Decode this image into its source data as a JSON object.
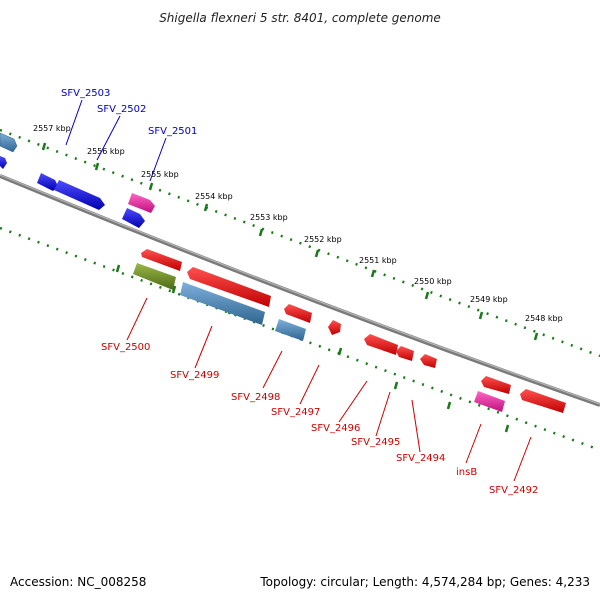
{
  "title": "Shigella flexneri 5 str. 8401, complete genome",
  "footer": {
    "accession": "Accession: NC_008258",
    "summary": "Topology: circular; Length: 4,574,284 bp; Genes: 4,233"
  },
  "colors": {
    "backbone": "#808080",
    "tick": "#1a7a1a",
    "label_top": "#0000cc",
    "label_bottom": "#cc0000",
    "blue": "#0000ee",
    "steelblue": "#4682b4",
    "red": "#ee0000",
    "pink": "#e8179a",
    "olive": "#6b8e23"
  },
  "kbp_labels": [
    "2557 kbp",
    "2556 kbp",
    "2555 kbp",
    "2554 kbp",
    "2553 kbp",
    "2552 kbp",
    "2551 kbp",
    "2550 kbp",
    "2549 kbp",
    "2548 kbp"
  ],
  "genes_top": [
    "SFV_2503",
    "SFV_2502",
    "SFV_2501"
  ],
  "genes_bottom": [
    "SFV_2500",
    "SFV_2499",
    "SFV_2498",
    "SFV_2497",
    "SFV_2496",
    "SFV_2495",
    "SFV_2494",
    "insB",
    "SFV_2492"
  ]
}
